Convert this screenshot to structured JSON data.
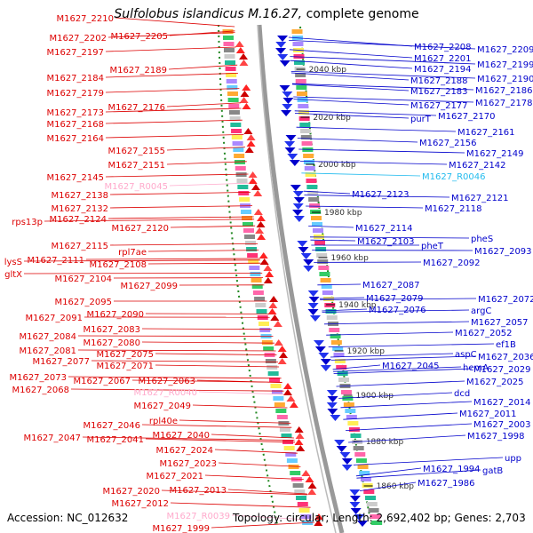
{
  "title": {
    "organism": "Sulfolobus islandicus M.16.27,",
    "suffix": "complete genome"
  },
  "footer": {
    "accession_label": "Accession:",
    "accession": "NC_012632",
    "topology_label": "Topology:",
    "topology": "circular;",
    "length_label": "Length:",
    "length": "2,692,402 bp;",
    "genes_label": "Genes:",
    "genes": "2,703"
  },
  "colors": {
    "reverse_strand": "#dd0000",
    "forward_strand": "#0000cc",
    "rna_reverse": "#ffaacc",
    "rna_forward": "#22bbee",
    "backbone": "#999999",
    "dotted_ring": "#228822"
  },
  "ticks": [
    "2040 kbp",
    "2020 kbp",
    "2000 kbp",
    "1980 kbp",
    "1960 kbp",
    "1940 kbp",
    "1920 kbp",
    "1900 kbp",
    "1880 kbp",
    "1860 kbp"
  ],
  "left_labels": [
    "M1627_2210",
    "M1627_2202",
    "M1627_2205",
    "M1627_2197",
    "M1627_2189",
    "M1627_2184",
    "M1627_2179",
    "M1627_2176",
    "M1627_2173",
    "M1627_2168",
    "M1627_2164",
    "M1627_2155",
    "M1627_2151",
    "M1627_2145",
    "M1627_R0045",
    "M1627_2138",
    "M1627_2132",
    "rps13p",
    "M1627_2124",
    "M1627_2120",
    "M1627_2115",
    "rpl7ae",
    "lysS",
    "M1627_2111",
    "M1627_2108",
    "gltX",
    "M1627_2104",
    "M1627_2099",
    "M1627_2095",
    "M1627_2091",
    "M1627_2090",
    "M1627_2084",
    "M1627_2083",
    "M1627_2081",
    "M1627_2080",
    "M1627_2077",
    "M1627_2075",
    "M1627_2073",
    "M1627_2071",
    "M1627_2068",
    "M1627_2067",
    "M1627_2063",
    "M1627_R0040",
    "M1627_2049",
    "M1627_2046",
    "rpl40e",
    "M1627_2047",
    "M1627_2041",
    "M1627_2040",
    "M1627_2024",
    "M1627_2023",
    "M1627_2021",
    "M1627_2020",
    "M1627_2013",
    "M1627_2012",
    "M1627_R0039",
    "M1627_1999"
  ],
  "right_labels": [
    "M1627_2208",
    "M1627_2209",
    "M1627_2201",
    "M1627_2194",
    "M1627_2199",
    "M1627_2188",
    "M1627_2190",
    "M1627_2183",
    "M1627_2186",
    "M1627_2177",
    "M1627_2178",
    "purT",
    "M1627_2170",
    "M1627_2161",
    "M1627_2156",
    "M1627_2149",
    "M1627_2142",
    "M1627_R0046",
    "M1627_2123",
    "M1627_2121",
    "M1627_2118",
    "M1627_2114",
    "pheS",
    "M1627_2103",
    "M1627_2093",
    "pheT",
    "M1627_2092",
    "M1627_2087",
    "M1627_2079",
    "M1627_2072",
    "M1627_2076",
    "argC",
    "M1627_2057",
    "M1627_2052",
    "ef1B",
    "aspC",
    "M1627_2036",
    "M1627_2045",
    "hemA",
    "M1627_2029",
    "M1627_2025",
    "dcd",
    "M1627_2014",
    "M1627_2011",
    "M1627_2003",
    "M1627_1998",
    "upp",
    "M1627_1994",
    "gatB",
    "M1627_1986"
  ]
}
